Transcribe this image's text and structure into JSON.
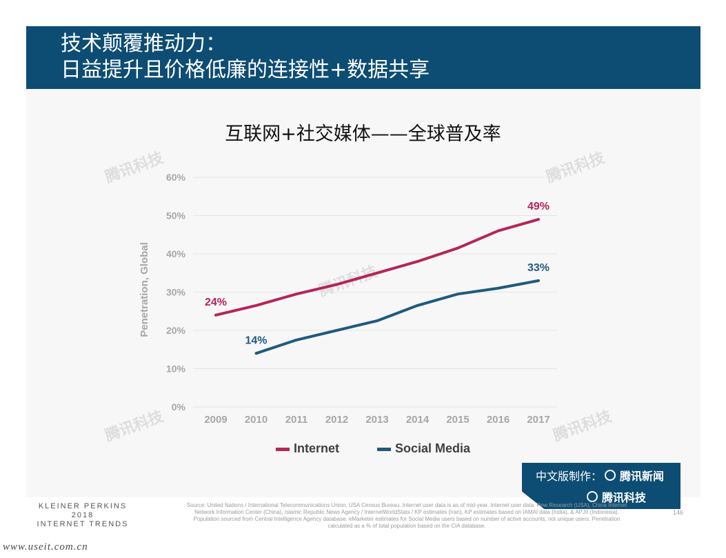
{
  "header": {
    "line1": "技术颠覆推动力：",
    "line2": "日益提升且价格低廉的连接性+数据共享"
  },
  "chart_data": {
    "type": "line",
    "title": "互联网+社交媒体——全球普及率",
    "xlabel": "",
    "ylabel": "Penetration, Global",
    "x": [
      "2009",
      "2010",
      "2011",
      "2012",
      "2013",
      "2014",
      "2015",
      "2016",
      "2017"
    ],
    "yticks": [
      "0%",
      "10%",
      "20%",
      "30%",
      "40%",
      "50%",
      "60%"
    ],
    "ylim": [
      0,
      60
    ],
    "grid": true,
    "legend_position": "bottom",
    "series": [
      {
        "name": "Internet",
        "color": "#b5245a",
        "values": [
          24,
          26.5,
          29.5,
          32,
          35,
          38,
          41.5,
          46,
          49
        ],
        "labels": [
          {
            "index": 0,
            "text": "24%"
          },
          {
            "index": 8,
            "text": "49%"
          }
        ]
      },
      {
        "name": "Social Media",
        "color": "#1f5a7f",
        "values": [
          null,
          14,
          17.5,
          20,
          22.5,
          26.5,
          29.5,
          31,
          33
        ],
        "labels": [
          {
            "index": 1,
            "text": "14%"
          },
          {
            "index": 8,
            "text": "33%"
          }
        ]
      }
    ]
  },
  "footer": {
    "brand": [
      "KLEINER PERKINS",
      "2018",
      "INTERNET TRENDS"
    ],
    "source": "Source: United Nations / International Telecommunications Union, USA Census Bureau. Internet user data is as of mid-year. Internet user data: Pew Research (USA), China Internet Network Information Center (China), Islamic Republic News Agency / InternetWorldStats / KP estimates (Iran), KP estimates based on IAMAI data (India), & APJII (Indonesia). Population sourced from Central Intelligence Agency database. eMarketer estimates for Social Media users based on number of active accounts, not unique users. Penetration calculated as a % of total population based on the CIA database.",
    "page": "146",
    "url": "www.useit.com.cn"
  },
  "badge": {
    "line1_prefix": "中文版制作：",
    "line1_brand": "腾讯新闻",
    "line2_brand": "腾讯科技"
  },
  "watermark": "腾讯科技"
}
